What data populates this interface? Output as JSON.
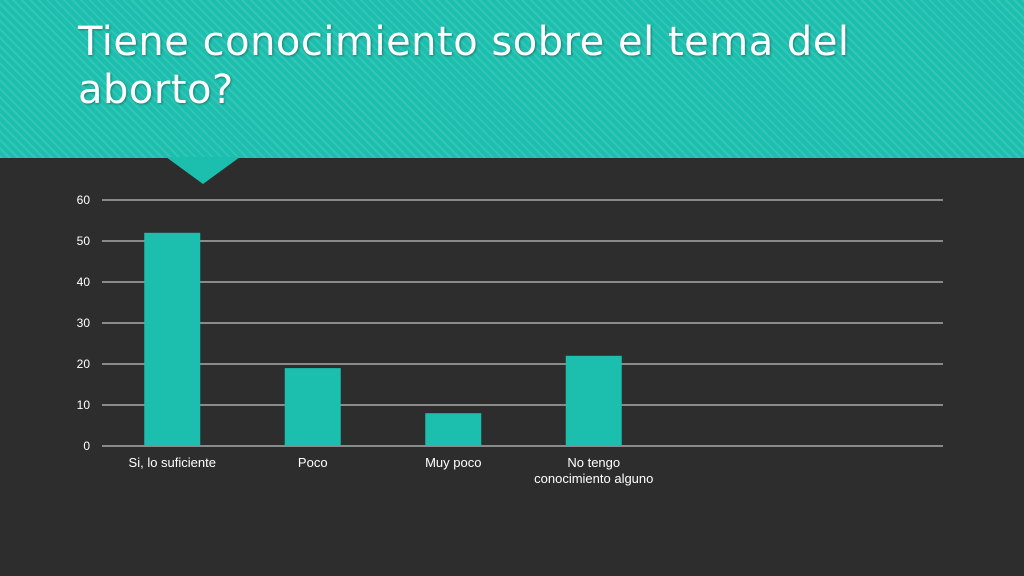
{
  "slide": {
    "title": "Tiene conocimiento sobre el tema del aborto?",
    "banner_color": "#1cbfae",
    "background_color": "#2d2d2d"
  },
  "chart_data": {
    "type": "bar",
    "categories": [
      "Si, lo suficiente",
      "Poco",
      "Muy poco",
      "No tengo conocimiento alguno"
    ],
    "category_lines": [
      [
        "Si, lo suficiente"
      ],
      [
        "Poco"
      ],
      [
        "Muy poco"
      ],
      [
        "No tengo",
        "conocimiento alguno"
      ]
    ],
    "values": [
      52,
      19,
      8,
      22
    ],
    "title": "",
    "xlabel": "",
    "ylabel": "",
    "ylim": [
      0,
      60
    ],
    "yticks": [
      0,
      10,
      20,
      30,
      40,
      50,
      60
    ],
    "grid": true,
    "legend": "none",
    "bar_color": "#1cbfae",
    "grid_color": "#e6e6e6"
  }
}
